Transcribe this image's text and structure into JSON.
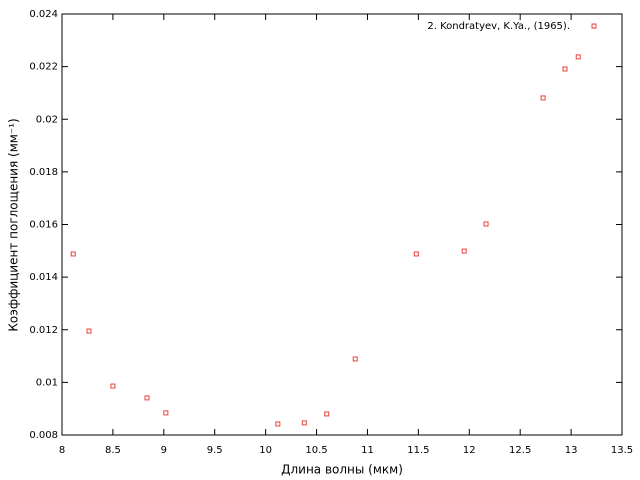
{
  "chart_data": {
    "type": "scatter",
    "xlabel": "Длина волны (мкм)",
    "ylabel": "Коэффициент поглощения (мм⁻¹)",
    "legend": "top-right",
    "series": [
      {
        "name": "2. Kondratyev, K.Ya., (1965).",
        "color": "#e8413a",
        "x": [
          8.11,
          8.265,
          8.5,
          8.835,
          9.02,
          10.12,
          10.38,
          10.6,
          10.88,
          11.48,
          11.95,
          12.165,
          12.725,
          12.94,
          13.07,
          13.225
        ],
        "values": [
          0.01488,
          0.01195,
          0.00986,
          0.00941,
          0.00884,
          0.00842,
          0.00846,
          0.0088,
          0.01089,
          0.01488,
          0.01499,
          0.01602,
          0.02081,
          0.02191,
          0.02237,
          0.02354
        ]
      }
    ],
    "xlim": [
      8,
      13.5
    ],
    "xticks": [
      8,
      8.5,
      9,
      9.5,
      10,
      10.5,
      11,
      11.5,
      12,
      12.5,
      13,
      13.5
    ],
    "ylim": [
      0.008,
      0.024
    ],
    "yticks": [
      0.008,
      0.01,
      0.012,
      0.014,
      0.016,
      0.018,
      0.02,
      0.022,
      0.024
    ]
  }
}
